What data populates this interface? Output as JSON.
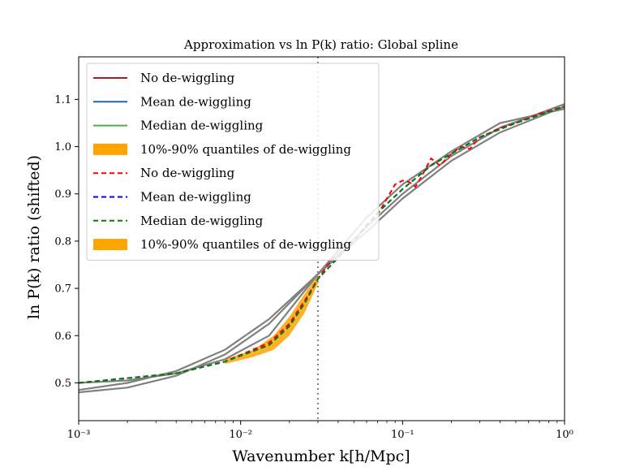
{
  "chart_data": {
    "type": "line",
    "title": "Approximation vs ln P(k) ratio: Global spline",
    "xlabel": "Wavenumber k[h/Mpc]",
    "ylabel": "ln P(k) ratio (shifted)",
    "xscale": "log",
    "xlim": [
      0.001,
      1
    ],
    "ylim": [
      0.42,
      1.19
    ],
    "xticks": [
      0.001,
      0.01,
      0.1,
      1
    ],
    "xtick_labels": [
      "10⁻³",
      "10⁻²",
      "10⁻¹",
      "10⁰"
    ],
    "yticks": [
      0.5,
      0.6,
      0.7,
      0.8,
      0.9,
      1.0,
      1.1
    ],
    "ytick_labels": [
      "0.5",
      "0.6",
      "0.7",
      "0.8",
      "0.9",
      "1.0",
      "1.1"
    ],
    "grid": false,
    "legend_position": "top-left",
    "vline": {
      "x": 0.03,
      "color": "#808080",
      "style": "dotted"
    },
    "legend": [
      {
        "label": "No de-wiggling",
        "color": "#b2182b",
        "style": "solid"
      },
      {
        "label": "Mean de-wiggling",
        "color": "#2166ac",
        "style": "solid"
      },
      {
        "label": "Median de-wiggling",
        "color": "#4daf4a",
        "style": "solid"
      },
      {
        "label": "10%-90% quantiles of de-wiggling",
        "color": "#ffa500",
        "style": "band"
      },
      {
        "label": "No de-wiggling",
        "color": "#ff0000",
        "style": "dashed"
      },
      {
        "label": "Mean de-wiggling",
        "color": "#0000ff",
        "style": "dashed"
      },
      {
        "label": "Median de-wiggling",
        "color": "#008000",
        "style": "dashed"
      },
      {
        "label": "10%-90% quantiles of de-wiggling",
        "color": "#ffa500",
        "style": "band"
      }
    ],
    "series": [
      {
        "color": "#ff0000",
        "style": "dashed",
        "x": [
          0.001,
          0.002,
          0.004,
          0.008,
          0.015,
          0.02,
          0.025,
          0.03,
          0.04,
          0.05,
          0.06,
          0.07,
          0.08,
          0.09,
          0.1,
          0.11,
          0.12,
          0.13,
          0.15,
          0.17,
          0.2,
          0.23,
          0.26,
          0.3,
          0.35,
          0.4,
          0.5,
          0.7,
          1.0
        ],
        "y": [
          0.5,
          0.51,
          0.52,
          0.545,
          0.585,
          0.625,
          0.675,
          0.72,
          0.78,
          0.8,
          0.835,
          0.855,
          0.89,
          0.92,
          0.928,
          0.925,
          0.915,
          0.935,
          0.975,
          0.96,
          0.985,
          1.0,
          0.995,
          1.02,
          1.03,
          1.04,
          1.05,
          1.07,
          1.085
        ]
      },
      {
        "color": "#0000ff",
        "style": "dashed",
        "x": [
          0.001,
          0.004,
          0.008,
          0.015,
          0.02,
          0.025,
          0.03,
          0.05,
          0.07,
          0.1,
          0.15,
          0.2,
          0.3,
          0.5,
          1.0
        ],
        "y": [
          0.5,
          0.52,
          0.545,
          0.58,
          0.62,
          0.67,
          0.72,
          0.8,
          0.86,
          0.91,
          0.96,
          0.985,
          1.02,
          1.05,
          1.085
        ]
      },
      {
        "color": "#008000",
        "style": "dashed",
        "x": [
          0.001,
          0.004,
          0.008,
          0.015,
          0.02,
          0.025,
          0.03,
          0.05,
          0.07,
          0.1,
          0.15,
          0.2,
          0.3,
          0.5,
          1.0
        ],
        "y": [
          0.5,
          0.52,
          0.545,
          0.58,
          0.62,
          0.67,
          0.72,
          0.8,
          0.86,
          0.91,
          0.96,
          0.985,
          1.02,
          1.05,
          1.085
        ]
      },
      {
        "color": "#808080",
        "style": "solid",
        "x": [
          0.001,
          0.002,
          0.004,
          0.008,
          0.015,
          0.03,
          0.06,
          0.1,
          0.2,
          0.4,
          1.0
        ],
        "y": [
          0.48,
          0.49,
          0.515,
          0.56,
          0.625,
          0.73,
          0.83,
          0.9,
          0.98,
          1.04,
          1.09
        ]
      },
      {
        "color": "#808080",
        "style": "solid",
        "x": [
          0.001,
          0.002,
          0.004,
          0.008,
          0.015,
          0.03,
          0.06,
          0.1,
          0.2,
          0.4,
          1.0
        ],
        "y": [
          0.485,
          0.5,
          0.525,
          0.57,
          0.635,
          0.73,
          0.82,
          0.89,
          0.97,
          1.03,
          1.085
        ]
      },
      {
        "color": "#808080",
        "style": "solid",
        "x": [
          0.001,
          0.002,
          0.004,
          0.008,
          0.015,
          0.03,
          0.06,
          0.1,
          0.2,
          0.4,
          1.0
        ],
        "y": [
          0.5,
          0.505,
          0.52,
          0.55,
          0.6,
          0.73,
          0.85,
          0.92,
          0.99,
          1.05,
          1.08
        ]
      }
    ],
    "bands": [
      {
        "color": "#ffa500",
        "x": [
          0.008,
          0.012,
          0.016,
          0.02,
          0.025,
          0.03
        ],
        "y_low": [
          0.54,
          0.555,
          0.57,
          0.6,
          0.65,
          0.71
        ],
        "y_high": [
          0.55,
          0.57,
          0.6,
          0.64,
          0.69,
          0.73
        ]
      }
    ]
  }
}
